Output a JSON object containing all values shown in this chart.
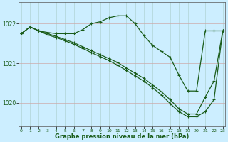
{
  "title": "Graphe pression niveau de la mer (hPa)",
  "bg_color": "#cceeff",
  "line_color": "#1a5c1a",
  "grid_color_v": "#b0d4d4",
  "grid_color_h": "#ccaaaa",
  "ylim": [
    1019.4,
    1022.55
  ],
  "xlim": [
    -0.3,
    23.3
  ],
  "yticks": [
    1020,
    1021,
    1022
  ],
  "xticks": [
    0,
    1,
    2,
    3,
    4,
    5,
    6,
    7,
    8,
    9,
    10,
    11,
    12,
    13,
    14,
    15,
    16,
    17,
    18,
    19,
    20,
    21,
    22,
    23
  ],
  "line1_x": [
    0,
    1,
    2,
    3,
    4,
    5,
    6,
    7,
    8,
    9,
    10,
    11,
    12,
    13,
    14,
    15,
    16,
    17,
    18,
    19,
    20,
    21,
    22,
    23
  ],
  "line1_y": [
    1021.75,
    1021.92,
    1021.82,
    1021.78,
    1021.75,
    1021.75,
    1021.75,
    1021.85,
    1022.0,
    1022.05,
    1022.15,
    1022.2,
    1022.2,
    1022.0,
    1021.7,
    1021.45,
    1021.3,
    1021.15,
    1020.7,
    1020.3,
    1020.3,
    1021.82,
    1021.82,
    1021.82
  ],
  "line2_x": [
    0,
    1,
    2,
    3,
    4,
    5,
    6,
    7,
    8,
    9,
    10,
    11,
    12,
    13,
    14,
    15,
    16,
    17,
    18,
    19,
    20,
    21,
    22,
    23
  ],
  "line2_y": [
    1021.75,
    1021.92,
    1021.82,
    1021.75,
    1021.68,
    1021.6,
    1021.52,
    1021.42,
    1021.32,
    1021.22,
    1021.12,
    1021.02,
    1020.88,
    1020.75,
    1020.62,
    1020.45,
    1020.28,
    1020.08,
    1019.85,
    1019.72,
    1019.72,
    1020.15,
    1020.55,
    1021.82
  ],
  "line3_x": [
    0,
    1,
    2,
    3,
    4,
    5,
    6,
    7,
    8,
    9,
    10,
    11,
    12,
    13,
    14,
    15,
    16,
    17,
    18,
    19,
    20,
    21,
    22,
    23
  ],
  "line3_y": [
    1021.75,
    1021.92,
    1021.82,
    1021.72,
    1021.65,
    1021.57,
    1021.48,
    1021.38,
    1021.27,
    1021.17,
    1021.07,
    1020.95,
    1020.82,
    1020.68,
    1020.55,
    1020.38,
    1020.2,
    1019.98,
    1019.78,
    1019.65,
    1019.65,
    1019.78,
    1020.08,
    1021.82
  ]
}
